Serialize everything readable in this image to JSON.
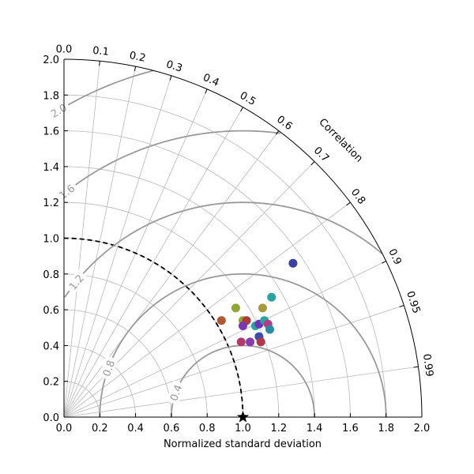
{
  "chart_data": {
    "type": "scatter",
    "subtype": "taylor-diagram",
    "xlabel": "Normalized standard deviation",
    "ylabel": "",
    "corr_axis_label": "Correlation",
    "xlim": [
      0,
      2.0
    ],
    "ylim": [
      0,
      2.0
    ],
    "x_ticks": [
      "0.0",
      "0.2",
      "0.4",
      "0.6",
      "0.8",
      "1.0",
      "1.2",
      "1.4",
      "1.6",
      "1.8",
      "2.0"
    ],
    "y_ticks": [
      "0.0",
      "0.2",
      "0.4",
      "0.6",
      "0.8",
      "1.0",
      "1.2",
      "1.4",
      "1.6",
      "1.8",
      "2.0"
    ],
    "correlation_ticks": [
      "0.0",
      "0.1",
      "0.2",
      "0.3",
      "0.4",
      "0.5",
      "0.6",
      "0.7",
      "0.8",
      "0.9",
      "0.95",
      "0.99"
    ],
    "rms_contours": [
      {
        "value": 0.4,
        "label": "0.4"
      },
      {
        "value": 0.8,
        "label": "0.8"
      },
      {
        "value": 1.2,
        "label": "1.2"
      },
      {
        "value": 1.6,
        "label": "1.6"
      },
      {
        "value": 2.0,
        "label": "2.0"
      }
    ],
    "reference": {
      "std": 1.0,
      "marker": "star"
    },
    "grid": true,
    "points": [
      {
        "x": 1.28,
        "y": 0.86,
        "color": "#3a3fa0"
      },
      {
        "x": 1.16,
        "y": 0.67,
        "color": "#2aa3a0"
      },
      {
        "x": 0.96,
        "y": 0.61,
        "color": "#8fa635"
      },
      {
        "x": 1.11,
        "y": 0.61,
        "color": "#a59a3c"
      },
      {
        "x": 0.88,
        "y": 0.54,
        "color": "#b05a33"
      },
      {
        "x": 1.0,
        "y": 0.54,
        "color": "#8fa635"
      },
      {
        "x": 1.02,
        "y": 0.54,
        "color": "#b03a3a"
      },
      {
        "x": 1.0,
        "y": 0.51,
        "color": "#7a38b0"
      },
      {
        "x": 1.07,
        "y": 0.51,
        "color": "#2aa3a0"
      },
      {
        "x": 1.09,
        "y": 0.52,
        "color": "#6d34b6"
      },
      {
        "x": 1.12,
        "y": 0.54,
        "color": "#2aa3a0"
      },
      {
        "x": 1.14,
        "y": 0.52,
        "color": "#b43a8a"
      },
      {
        "x": 1.15,
        "y": 0.49,
        "color": "#2a8aa0"
      },
      {
        "x": 1.09,
        "y": 0.45,
        "color": "#3a50a8"
      },
      {
        "x": 0.99,
        "y": 0.42,
        "color": "#b03a6a"
      },
      {
        "x": 1.04,
        "y": 0.42,
        "color": "#8a3ab0"
      },
      {
        "x": 1.1,
        "y": 0.42,
        "color": "#b03a4a"
      }
    ]
  }
}
